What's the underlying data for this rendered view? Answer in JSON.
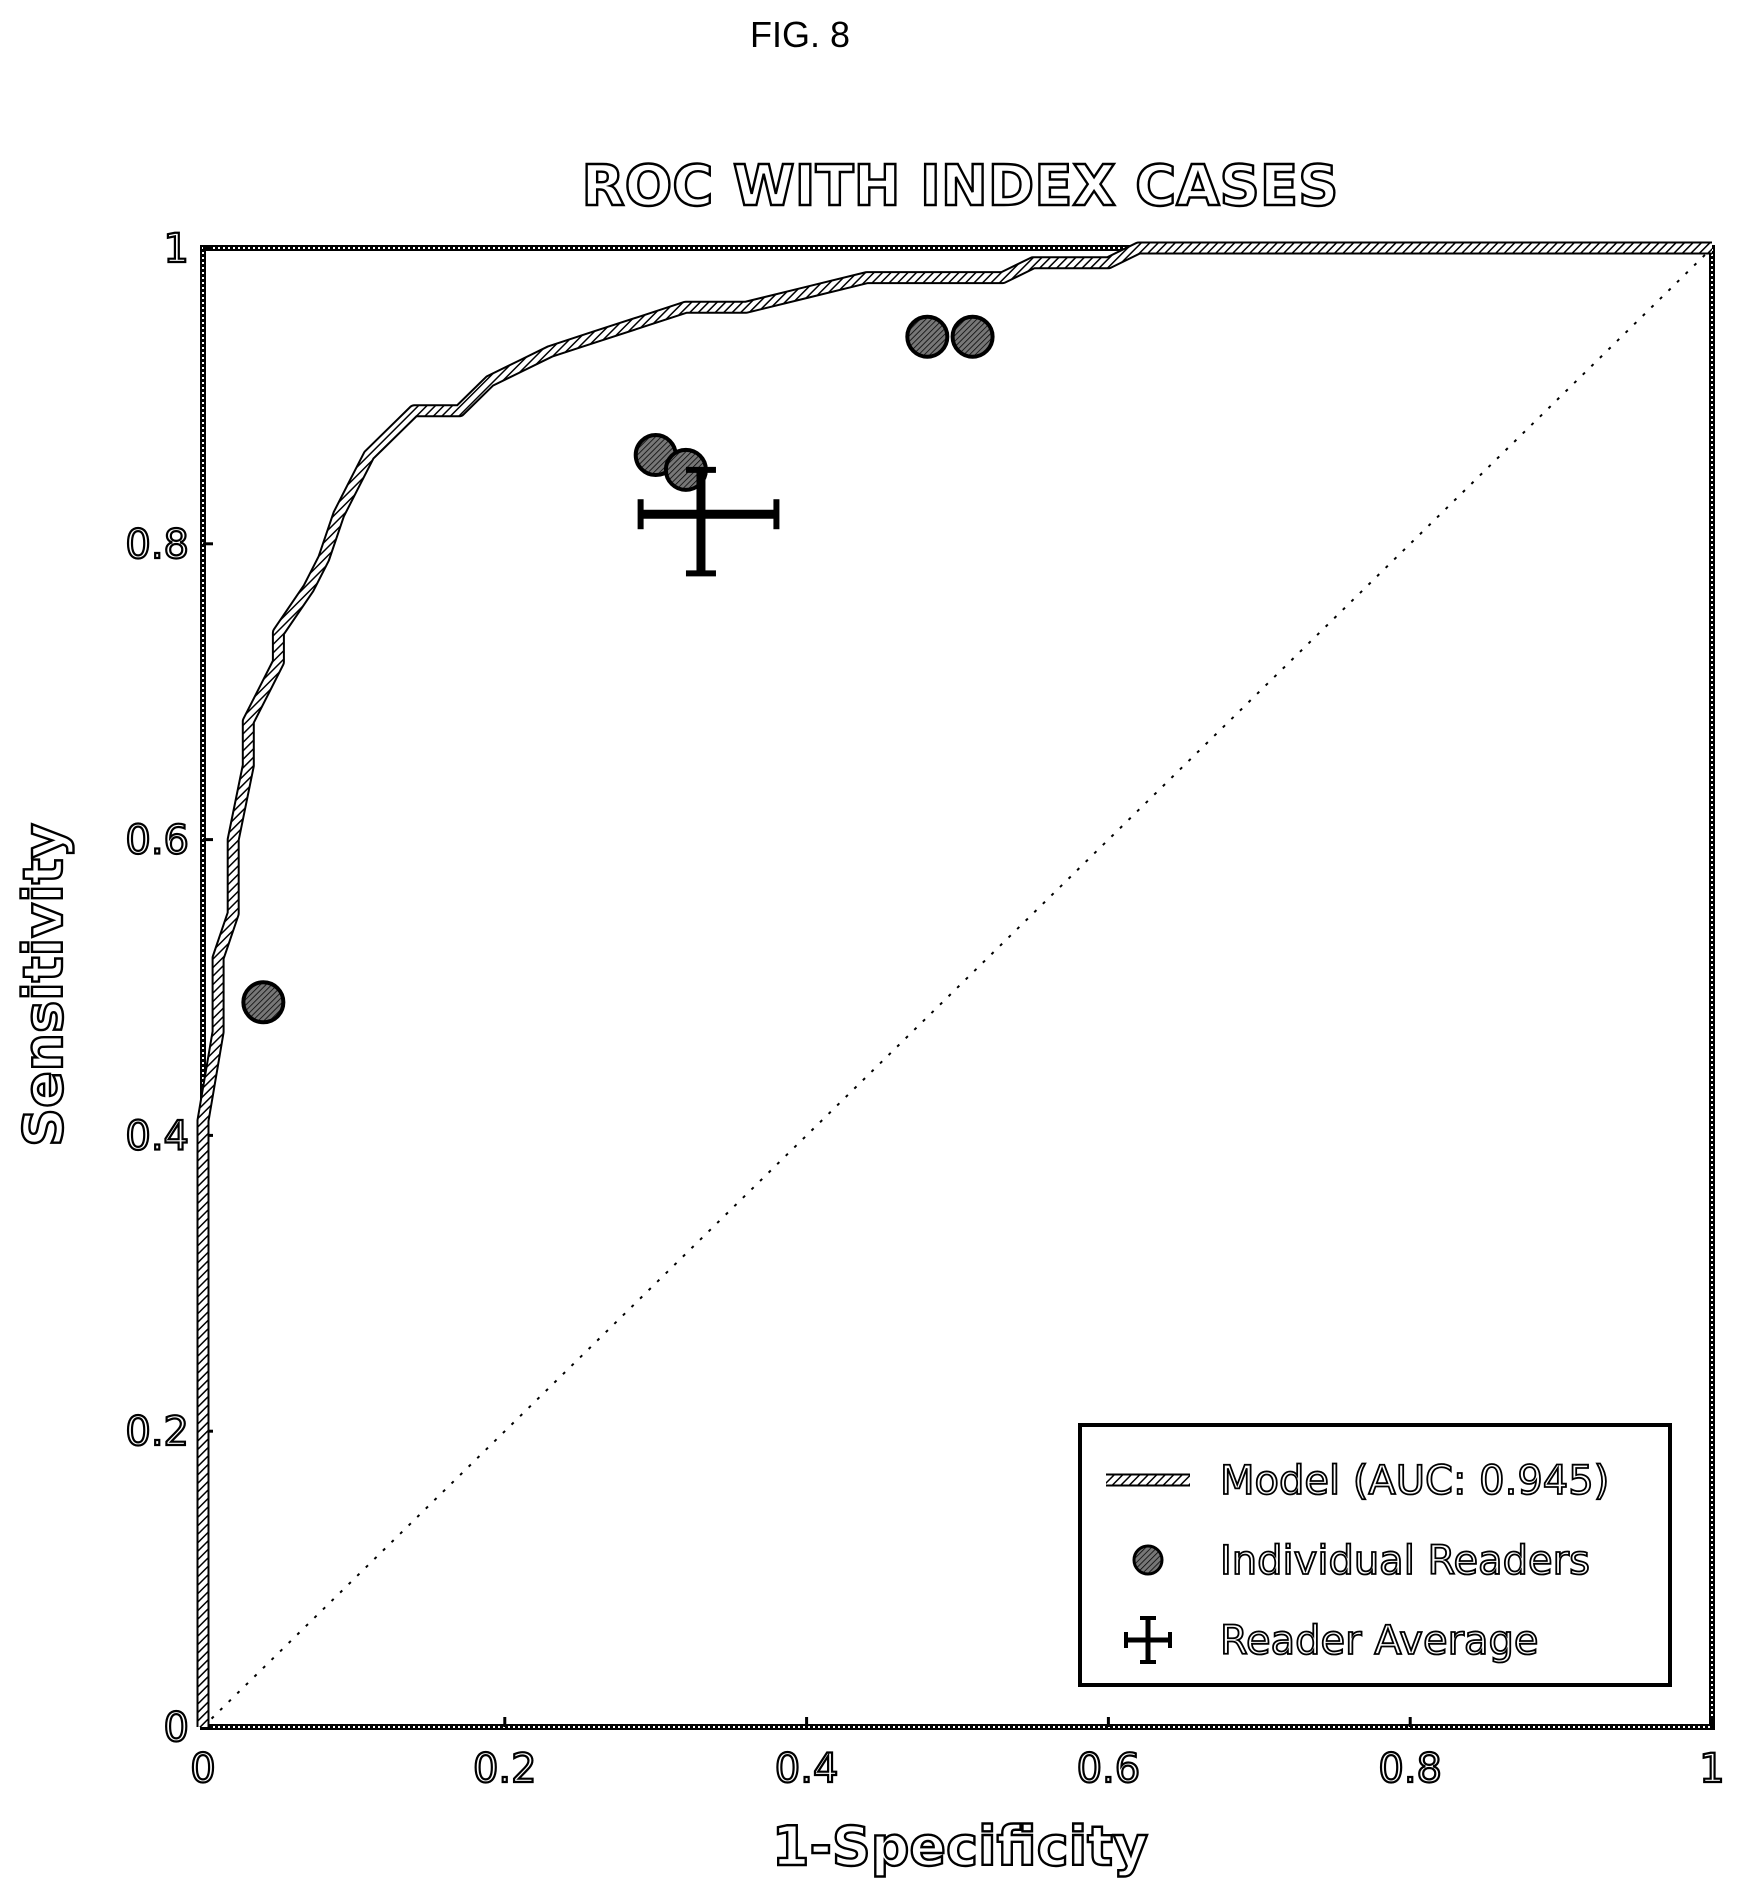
{
  "figure_label": "FIG. 8",
  "chart_data": {
    "type": "line",
    "title": "ROC WITH INDEX CASES",
    "xlabel": "1-Specificity",
    "ylabel": "Sensitivity",
    "xlim": [
      0,
      1
    ],
    "ylim": [
      0,
      1
    ],
    "xticks": [
      "0",
      "0.2",
      "0.4",
      "0.6",
      "0.8",
      "1"
    ],
    "yticks": [
      "0",
      "0.2",
      "0.4",
      "0.6",
      "0.8",
      "1"
    ],
    "grid": false,
    "legend_position": "bottom-right",
    "series": [
      {
        "name": "Model (AUC: 0.945)",
        "kind": "line",
        "points": [
          [
            0.0,
            0.0
          ],
          [
            0.0,
            0.41
          ],
          [
            0.01,
            0.47
          ],
          [
            0.01,
            0.52
          ],
          [
            0.02,
            0.55
          ],
          [
            0.02,
            0.6
          ],
          [
            0.03,
            0.65
          ],
          [
            0.03,
            0.68
          ],
          [
            0.04,
            0.7
          ],
          [
            0.05,
            0.72
          ],
          [
            0.05,
            0.74
          ],
          [
            0.07,
            0.77
          ],
          [
            0.08,
            0.79
          ],
          [
            0.09,
            0.82
          ],
          [
            0.1,
            0.84
          ],
          [
            0.11,
            0.86
          ],
          [
            0.13,
            0.88
          ],
          [
            0.14,
            0.89
          ],
          [
            0.17,
            0.89
          ],
          [
            0.19,
            0.91
          ],
          [
            0.21,
            0.92
          ],
          [
            0.23,
            0.93
          ],
          [
            0.26,
            0.94
          ],
          [
            0.29,
            0.95
          ],
          [
            0.32,
            0.96
          ],
          [
            0.36,
            0.96
          ],
          [
            0.4,
            0.97
          ],
          [
            0.44,
            0.98
          ],
          [
            0.5,
            0.98
          ],
          [
            0.53,
            0.98
          ],
          [
            0.55,
            0.99
          ],
          [
            0.6,
            0.99
          ],
          [
            0.62,
            1.0
          ],
          [
            1.0,
            1.0
          ]
        ]
      },
      {
        "name": "Individual Readers",
        "kind": "scatter",
        "points": [
          [
            0.04,
            0.49
          ],
          [
            0.3,
            0.86
          ],
          [
            0.32,
            0.85
          ],
          [
            0.48,
            0.94
          ],
          [
            0.51,
            0.94
          ]
        ]
      },
      {
        "name": "Reader Average",
        "kind": "errorbar",
        "point": [
          0.33,
          0.82
        ],
        "x_error": [
          0.29,
          0.38
        ],
        "y_error": [
          0.78,
          0.85
        ]
      }
    ],
    "reference_line": {
      "from": [
        0,
        0
      ],
      "to": [
        1,
        1
      ],
      "style": "dashed"
    }
  }
}
